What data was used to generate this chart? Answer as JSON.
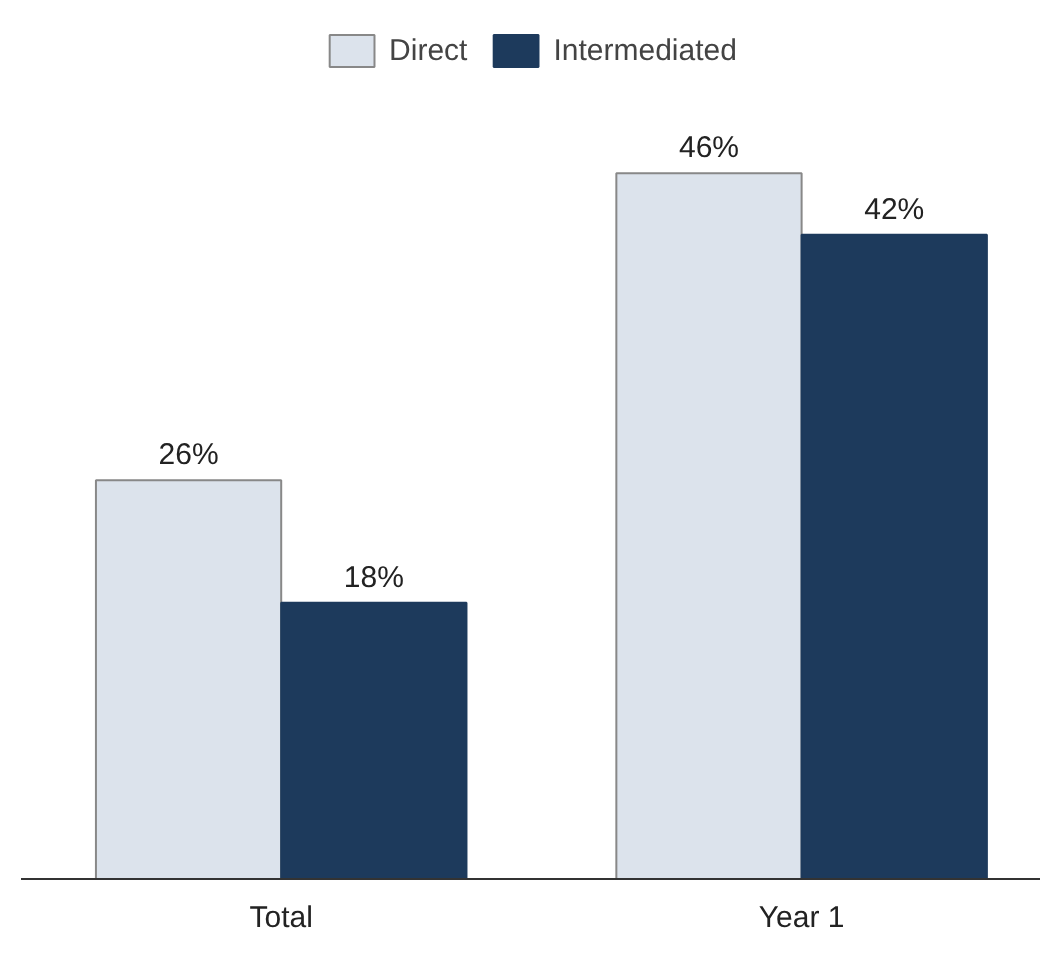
{
  "chart_data": {
    "type": "bar",
    "categories": [
      "Total",
      "Year 1"
    ],
    "series": [
      {
        "name": "Direct",
        "color": "#dce3ec",
        "values": [
          26,
          46
        ],
        "value_labels": [
          "26%",
          "46%"
        ]
      },
      {
        "name": "Intermediated",
        "color": "#1d3a5c",
        "values": [
          18,
          42
        ],
        "value_labels": [
          "18%",
          "42%"
        ]
      }
    ],
    "legend": "top"
  }
}
